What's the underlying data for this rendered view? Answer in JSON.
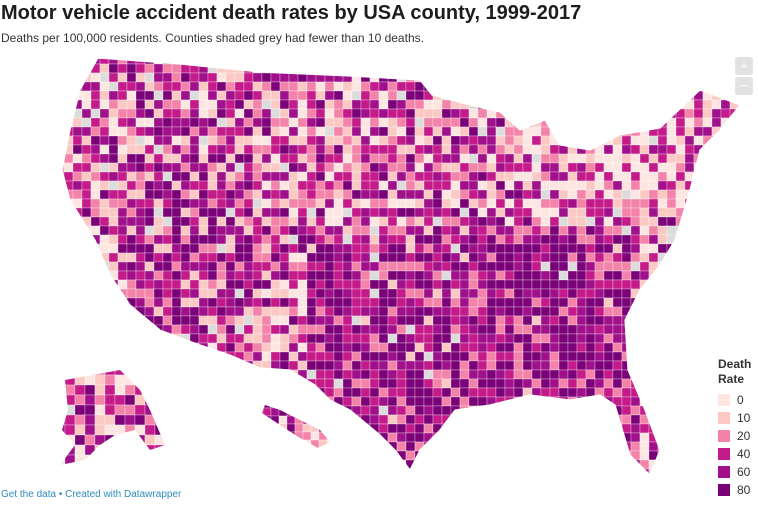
{
  "title": "Motor vehicle accident death rates by USA county, 1999-2017",
  "subtitle": "Deaths per 100,000 residents. Counties shaded grey had fewer than 10 deaths.",
  "zoom_controls": {
    "zoom_in": "+",
    "zoom_out": "−"
  },
  "legend": {
    "title_line1": "Death",
    "title_line2": "Rate",
    "items": [
      {
        "label": "0",
        "color": "#fde6e1"
      },
      {
        "label": "10",
        "color": "#fbc8c3"
      },
      {
        "label": "20",
        "color": "#f383a8"
      },
      {
        "label": "40",
        "color": "#c51b8a"
      },
      {
        "label": "60",
        "color": "#a0108b"
      },
      {
        "label": "80",
        "color": "#7a0177"
      }
    ],
    "no_data_color": "#dcdcdc"
  },
  "footer": {
    "get_data": "Get the data",
    "separator": " • ",
    "created_with": "Created with Datawrapper"
  }
}
